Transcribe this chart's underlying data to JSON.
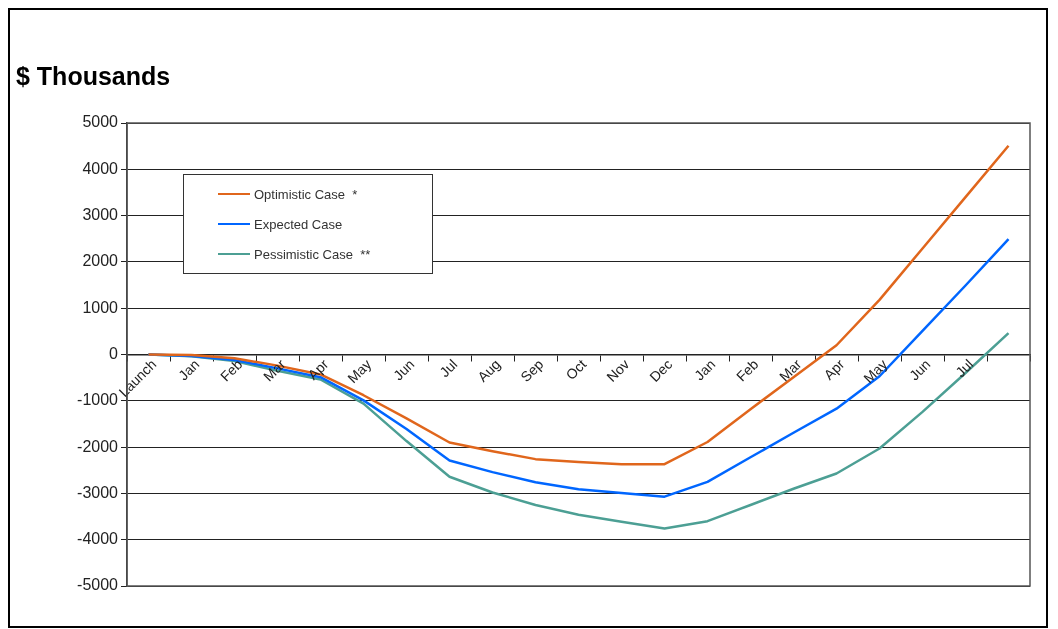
{
  "chart_data": {
    "type": "line",
    "title": "$ Thousands",
    "categories": [
      "Launch",
      "Jan",
      "Feb",
      "Mar",
      "Apr",
      "May",
      "Jun",
      "Jul",
      "Aug",
      "Sep",
      "Oct",
      "Nov",
      "Dec",
      "Jan",
      "Feb",
      "Mar",
      "Apr",
      "May",
      "Jun",
      "Jul",
      null
    ],
    "series": [
      {
        "name": "Optimistic Case  *",
        "color": "#e0661c",
        "values": [
          0,
          -10,
          -80,
          -240,
          -430,
          -880,
          -1380,
          -1900,
          -2090,
          -2260,
          -2320,
          -2370,
          -2370,
          -1890,
          -1180,
          -490,
          200,
          1180,
          2290,
          3400,
          4510
        ]
      },
      {
        "name": "Expected Case",
        "color": "#0066ff",
        "values": [
          0,
          -30,
          -120,
          -300,
          -490,
          -990,
          -1610,
          -2290,
          -2540,
          -2760,
          -2910,
          -2990,
          -3070,
          -2750,
          -2220,
          -1690,
          -1170,
          -470,
          510,
          1490,
          2490
        ]
      },
      {
        "name": "Pessimistic Case  **",
        "color": "#4c9f94",
        "values": [
          0,
          -40,
          -140,
          -350,
          -540,
          -1060,
          -1870,
          -2640,
          -2980,
          -3250,
          -3460,
          -3610,
          -3760,
          -3600,
          -3250,
          -2900,
          -2570,
          -2030,
          -1240,
          -400,
          460
        ]
      }
    ],
    "ylim": [
      -5000,
      5000
    ],
    "yticks": [
      -5000,
      -4000,
      -3000,
      -2000,
      -1000,
      0,
      1000,
      2000,
      3000,
      4000,
      5000
    ],
    "grid": "y",
    "legend": "top left",
    "marker": "none",
    "line_style": "solid"
  }
}
